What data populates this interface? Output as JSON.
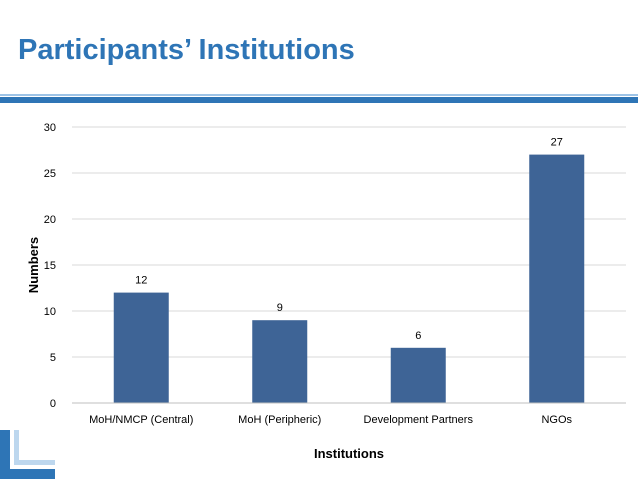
{
  "slide": {
    "title": "Participants’ Institutions",
    "colors": {
      "title": "#2e75b6",
      "rule": "#2e75b6",
      "bar": "#3e6496"
    }
  },
  "chart_data": {
    "type": "bar",
    "categories": [
      "MoH/NMCP (Central)",
      "MoH (Peripheric)",
      "Development Partners",
      "NGOs"
    ],
    "values": [
      12,
      9,
      6,
      27
    ],
    "data_labels": [
      "12",
      "9",
      "6",
      "27"
    ],
    "xlabel": "Institutions",
    "ylabel": "Numbers",
    "ylim": [
      0,
      30
    ],
    "yticks": [
      "0",
      "5",
      "10",
      "15",
      "20",
      "25",
      "30"
    ],
    "grid": true,
    "legend": "none"
  }
}
